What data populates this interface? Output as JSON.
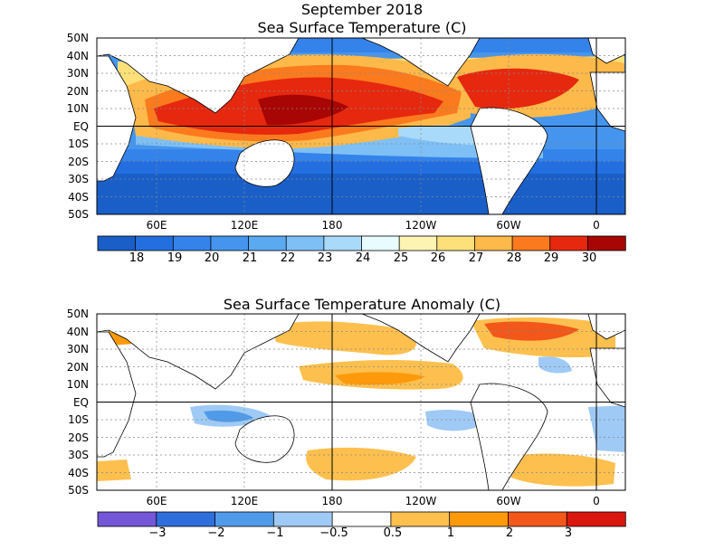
{
  "page": {
    "date_title": "September 2018",
    "panel1_title": "Sea Surface Temperature (C)",
    "panel2_title": "Sea Surface Temperature Anomaly (C)"
  },
  "lat_labels": [
    "50N",
    "40N",
    "30N",
    "20N",
    "10N",
    "EQ",
    "10S",
    "20S",
    "30S",
    "40S",
    "50S"
  ],
  "lon_labels": [
    "60E",
    "120E",
    "180",
    "120W",
    "60W",
    "0"
  ],
  "sst_colorbar": {
    "labels": [
      "18",
      "19",
      "20",
      "21",
      "22",
      "23",
      "24",
      "25",
      "26",
      "27",
      "28",
      "29",
      "30"
    ],
    "colors": [
      "#1a5fc8",
      "#236fe0",
      "#3483ea",
      "#4595ee",
      "#5aaaf2",
      "#7ec0f6",
      "#a9dafa",
      "#e8fcff",
      "#fdf3b2",
      "#fde07a",
      "#fdb94a",
      "#fb7a1e",
      "#e6280f",
      "#a80505"
    ]
  },
  "anom_colorbar": {
    "labels": [
      "−3",
      "−2",
      "−1",
      "−0.5",
      "0.5",
      "1",
      "2",
      "3"
    ],
    "colors": [
      "#7457d6",
      "#2f6fdc",
      "#4f9be9",
      "#9fcaf5",
      "#ffffff",
      "#fdc04f",
      "#fd9a0c",
      "#f3571a",
      "#d9170f"
    ]
  }
}
